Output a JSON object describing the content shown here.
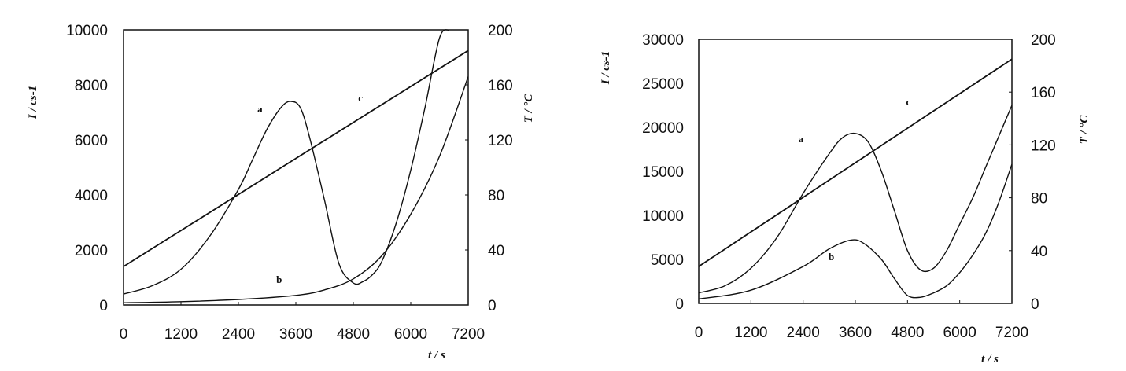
{
  "chart_data": [
    {
      "type": "line",
      "xlabel": "t / s",
      "ylabel_left": "I / cs-1",
      "ylabel_right": "T / °C",
      "xlim": [
        0,
        7200
      ],
      "ylim_left": [
        0,
        10000
      ],
      "ylim_right": [
        0,
        200
      ],
      "x_ticks": [
        "0",
        "1200",
        "2400",
        "3600",
        "4800",
        "6000",
        "7200"
      ],
      "y_left_ticks": [
        "0",
        "2000",
        "4000",
        "6000",
        "8000",
        "10000"
      ],
      "y_right_ticks": [
        "0",
        "40",
        "80",
        "120",
        "160",
        "200"
      ],
      "grid": false,
      "series": [
        {
          "name": "a",
          "axis": "left",
          "x": [
            0,
            600,
            1200,
            1800,
            2400,
            2700,
            3000,
            3300,
            3500,
            3700,
            3900,
            4200,
            4500,
            4800,
            5000,
            5200,
            5400,
            5700,
            6000,
            6300,
            6600,
            6800
          ],
          "y": [
            400,
            700,
            1300,
            2500,
            4200,
            5300,
            6400,
            7200,
            7400,
            7150,
            6000,
            3800,
            1500,
            800,
            850,
            1100,
            1600,
            3000,
            4900,
            7200,
            9700,
            10000
          ]
        },
        {
          "name": "b",
          "axis": "left",
          "x": [
            0,
            1200,
            2400,
            3600,
            4200,
            4800,
            5400,
            6000,
            6600,
            7200
          ],
          "y": [
            80,
            120,
            200,
            350,
            550,
            950,
            1800,
            3300,
            5400,
            8300
          ]
        },
        {
          "name": "c",
          "axis": "right",
          "x": [
            0,
            7200
          ],
          "y": [
            28,
            185
          ]
        }
      ],
      "labels": [
        {
          "text": "a",
          "x": 2850,
          "y": 7000
        },
        {
          "text": "b",
          "x": 3250,
          "y": 800
        },
        {
          "text": "c",
          "x": 4950,
          "y": 7400
        }
      ]
    },
    {
      "type": "line",
      "xlabel": "t / s",
      "ylabel_left": "I / cs-1",
      "ylabel_right": "T / °C",
      "xlim": [
        0,
        7200
      ],
      "ylim_left": [
        0,
        30000
      ],
      "ylim_right": [
        0,
        200
      ],
      "x_ticks": [
        "0",
        "1200",
        "2400",
        "3600",
        "4800",
        "6000",
        "7200"
      ],
      "y_left_ticks": [
        "0",
        "5000",
        "10000",
        "15000",
        "20000",
        "25000",
        "30000"
      ],
      "y_right_ticks": [
        "0",
        "40",
        "80",
        "120",
        "160",
        "200"
      ],
      "grid": false,
      "series": [
        {
          "name": "a",
          "axis": "left",
          "x": [
            0,
            600,
            1200,
            1800,
            2400,
            3000,
            3300,
            3600,
            3900,
            4200,
            4500,
            4800,
            5100,
            5400,
            5700,
            6000,
            6300,
            6600,
            6900,
            7200
          ],
          "y": [
            1200,
            2000,
            4000,
            7500,
            12500,
            17000,
            18800,
            19300,
            18300,
            15000,
            10500,
            6000,
            3800,
            4000,
            6000,
            9000,
            12000,
            15500,
            19000,
            22500
          ]
        },
        {
          "name": "b",
          "axis": "left",
          "x": [
            0,
            1200,
            2400,
            3000,
            3500,
            3800,
            4200,
            4500,
            4800,
            5100,
            5400,
            5700,
            6000,
            6300,
            6600,
            6900,
            7200
          ],
          "y": [
            500,
            1500,
            4200,
            6200,
            7200,
            6800,
            5000,
            2800,
            900,
            700,
            1200,
            2000,
            3500,
            5500,
            8000,
            11500,
            15800
          ]
        },
        {
          "name": "c",
          "axis": "right",
          "x": [
            0,
            7200
          ],
          "y": [
            28,
            185
          ]
        }
      ],
      "labels": [
        {
          "text": "a",
          "x": 2350,
          "y": 18300
        },
        {
          "text": "b",
          "x": 3050,
          "y": 4900
        },
        {
          "text": "c",
          "x": 4820,
          "y": 22500
        }
      ]
    }
  ]
}
